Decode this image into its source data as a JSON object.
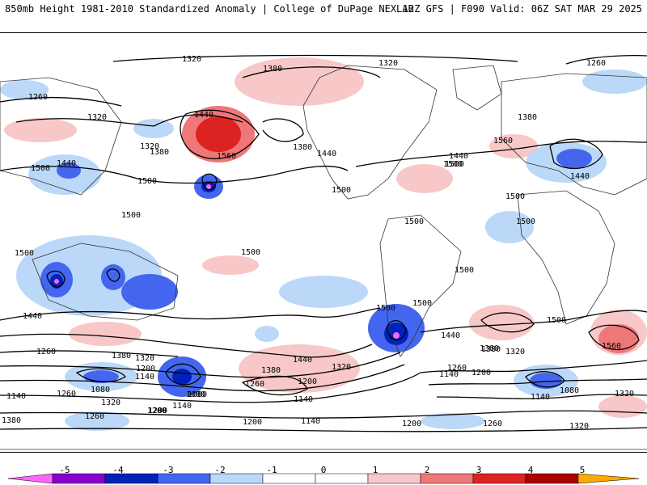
{
  "header": {
    "left_title": "850mb Height 1981-2010 Standardized Anomaly | College of DuPage NEXLAB",
    "right_title": "12Z GFS | F090 Valid: 06Z SAT MAR 29 2025"
  },
  "colors": {
    "neg5": "#ff66ff",
    "neg4": "#8800cc",
    "neg3": "#0022bb",
    "neg2": "#4466ee",
    "neg1": "#bbd8f8",
    "pos1": "#f8c8c8",
    "pos2": "#ee7777",
    "pos3": "#dd2222",
    "pos4": "#aa0000",
    "pos5": "#ffaa00"
  },
  "colorbar": {
    "ticks": [
      "-5",
      "-4",
      "-3",
      "-2",
      "-1",
      "0",
      "1",
      "2",
      "3",
      "4",
      "5"
    ]
  },
  "contour_labels": [
    "1320",
    "1380",
    "1320",
    "1260",
    "1260",
    "1320",
    "1380",
    "1440",
    "1560",
    "1380",
    "1440",
    "1320",
    "1380",
    "1500",
    "1440",
    "1500",
    "1500",
    "1440",
    "1500",
    "1560",
    "1440",
    "1500",
    "1500",
    "1500",
    "1500",
    "1500",
    "1500",
    "1500",
    "1500",
    "1500",
    "1500",
    "1440",
    "1260",
    "1380",
    "1320",
    "1200",
    "1140",
    "1080",
    "1380",
    "1440",
    "1320",
    "1260",
    "1200",
    "1080",
    "1140",
    "1200",
    "1260",
    "1320",
    "1380",
    "1500",
    "1440",
    "1380",
    "1320",
    "1560",
    "1260",
    "1200",
    "1140",
    "1080",
    "1140",
    "1320",
    "1140",
    "1260",
    "1200",
    "1080",
    "1140",
    "1200",
    "1260",
    "1320",
    "1380",
    "1200",
    "1140"
  ]
}
